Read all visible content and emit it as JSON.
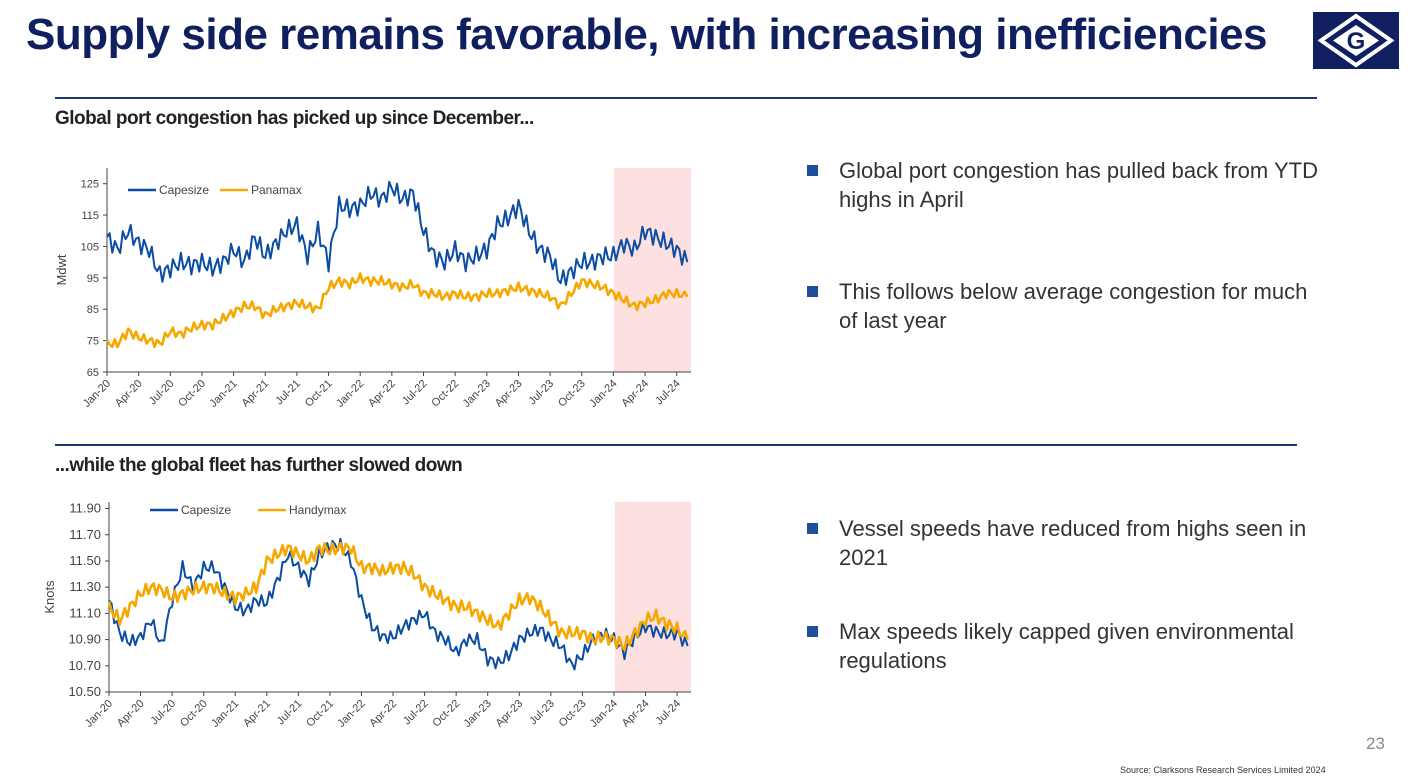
{
  "title": "Supply side remains favorable, with increasing inefficiencies",
  "logo_text": "G",
  "sections": [
    {
      "heading": "Global port congestion has picked up since December...",
      "bullets": [
        "Global port congestion has pulled back from YTD highs in April",
        "This follows below average congestion for much of last year"
      ]
    },
    {
      "heading": "...while the global fleet has further slowed down",
      "bullets": [
        "Vessel speeds have reduced from highs seen in 2021",
        "Max speeds likely capped given environmental regulations"
      ]
    }
  ],
  "page_number": "23",
  "source": "Source: Clarksons Research Services Limited 2024",
  "colors": {
    "navy": "#0f1f5f",
    "capesize": "#0b4da2",
    "secondary": "#f7a800",
    "highlight": "#fde0e0"
  },
  "chart_data": [
    {
      "type": "line",
      "title": "Global port congestion has picked up since December...",
      "ylabel": "Mdwt",
      "ylim": [
        65,
        130
      ],
      "yticks": [
        "65",
        "75",
        "85",
        "95",
        "105",
        "115",
        "125"
      ],
      "xticks": [
        "Jan-20",
        "Apr-20",
        "Jul-20",
        "Oct-20",
        "Jan-21",
        "Apr-21",
        "Jul-21",
        "Oct-21",
        "Jan-22",
        "Apr-22",
        "Jul-22",
        "Oct-22",
        "Jan-23",
        "Apr-23",
        "Jul-23",
        "Oct-23",
        "Jan-24",
        "Apr-24",
        "Jul-24"
      ],
      "x_start": "Jan-20",
      "x_step": "month",
      "highlight_range": [
        "Jan-24",
        "Aug-24"
      ],
      "legend_position": "top-left",
      "series": [
        {
          "name": "Capesize",
          "color": "#0b4da2",
          "values": [
            108,
            104,
            110,
            106,
            104,
            96,
            98,
            100,
            99,
            100,
            98,
            100,
            104,
            100,
            108,
            102,
            106,
            110,
            112,
            102,
            110,
            100,
            118,
            117,
            118,
            122,
            120,
            124,
            120,
            122,
            110,
            102,
            100,
            104,
            100,
            102,
            104,
            112,
            114,
            118,
            110,
            104,
            102,
            94,
            97,
            100,
            100,
            102,
            102,
            106,
            104,
            110,
            108,
            106,
            104,
            100
          ]
        },
        {
          "name": "Panamax",
          "color": "#f7a800",
          "values": [
            74,
            74,
            78,
            76,
            75,
            74,
            78,
            77,
            79,
            80,
            80,
            82,
            84,
            86,
            86,
            83,
            85,
            86,
            87,
            86,
            85,
            92,
            94,
            93,
            95,
            94,
            94,
            93,
            92,
            93,
            90,
            90,
            89,
            90,
            89,
            89,
            90,
            90,
            91,
            92,
            91,
            90,
            89,
            86,
            90,
            94,
            93,
            92,
            90,
            88,
            86,
            87,
            88,
            90,
            90,
            89
          ]
        }
      ]
    },
    {
      "type": "line",
      "title": "...while the global fleet has further slowed down",
      "ylabel": "Knots",
      "ylim": [
        10.5,
        11.95
      ],
      "yticks": [
        "10.50",
        "10.70",
        "10.90",
        "11.10",
        "11.30",
        "11.50",
        "11.70",
        "11.90"
      ],
      "xticks": [
        "Jan-20",
        "Apr-20",
        "Jul-20",
        "Oct-20",
        "Jan-21",
        "Apr-21",
        "Jul-21",
        "Oct-21",
        "Jan-22",
        "Apr-22",
        "Jul-22",
        "Oct-22",
        "Jan-23",
        "Apr-23",
        "Jul-23",
        "Oct-23",
        "Jan-24",
        "Apr-24",
        "Jul-24"
      ],
      "x_start": "Jan-20",
      "x_step": "month",
      "highlight_range": [
        "Jan-24",
        "Aug-24"
      ],
      "legend_position": "top-left",
      "series": [
        {
          "name": "Capesize",
          "color": "#0b4da2",
          "values": [
            11.2,
            10.95,
            10.88,
            10.92,
            11.05,
            10.85,
            11.2,
            11.45,
            11.3,
            11.45,
            11.45,
            11.3,
            11.15,
            11.12,
            11.2,
            11.18,
            11.35,
            11.55,
            11.45,
            11.35,
            11.55,
            11.62,
            11.62,
            11.5,
            11.2,
            11.0,
            10.92,
            10.92,
            11.0,
            11.05,
            11.1,
            10.95,
            10.9,
            10.8,
            10.9,
            10.9,
            10.75,
            10.72,
            10.78,
            10.9,
            10.95,
            10.98,
            10.9,
            10.85,
            10.7,
            10.78,
            10.9,
            10.95,
            10.9,
            10.8,
            10.92,
            11.0,
            10.96,
            10.94,
            10.95,
            10.85
          ]
        },
        {
          "name": "Handymax",
          "color": "#f7a800",
          "values": [
            11.15,
            11.05,
            11.15,
            11.25,
            11.3,
            11.28,
            11.22,
            11.25,
            11.28,
            11.3,
            11.3,
            11.25,
            11.22,
            11.25,
            11.3,
            11.5,
            11.55,
            11.6,
            11.55,
            11.5,
            11.6,
            11.58,
            11.6,
            11.6,
            11.45,
            11.45,
            11.42,
            11.45,
            11.45,
            11.4,
            11.3,
            11.25,
            11.2,
            11.15,
            11.15,
            11.1,
            11.05,
            11.0,
            11.1,
            11.2,
            11.22,
            11.15,
            11.05,
            10.95,
            10.95,
            10.95,
            10.9,
            10.92,
            10.9,
            10.85,
            10.95,
            11.05,
            11.08,
            11.02,
            10.98,
            10.9
          ]
        }
      ]
    }
  ]
}
